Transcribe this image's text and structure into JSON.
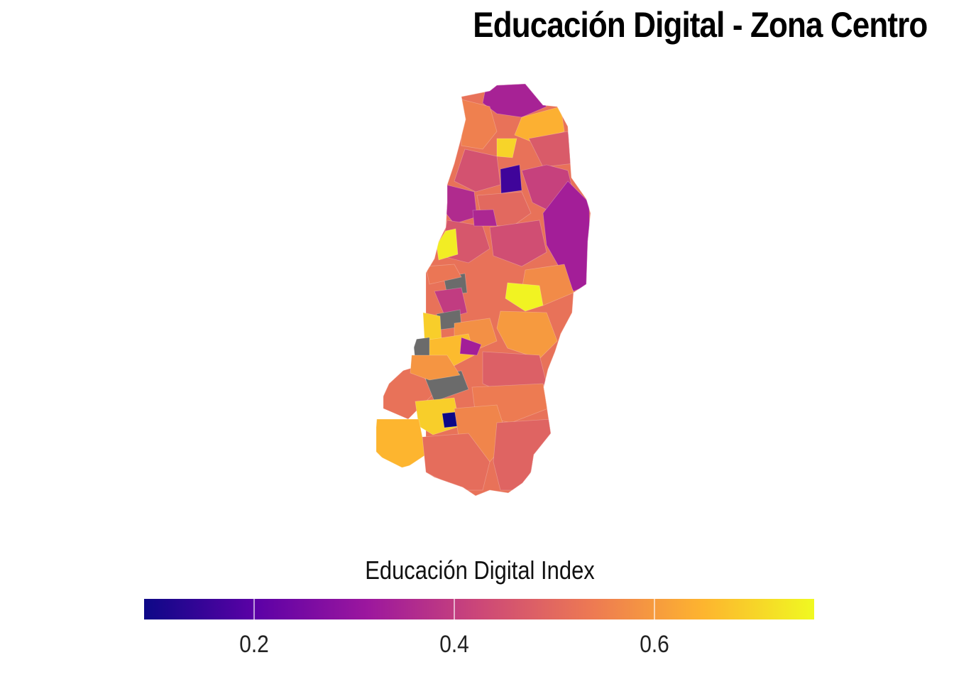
{
  "title": "Educación Digital - Zona Centro",
  "legend": {
    "title": "Educación Digital Index",
    "colormap": "plasma",
    "range": [
      0.09,
      0.76
    ],
    "ticks": [
      {
        "value": 0.2,
        "label": "0.2"
      },
      {
        "value": 0.4,
        "label": "0.4"
      },
      {
        "value": 0.6,
        "label": "0.6"
      }
    ],
    "gradient_colors": [
      "#0d0887",
      "#5c01a6",
      "#9c179e",
      "#cc4778",
      "#ed7953",
      "#fdb42f",
      "#f0f921"
    ],
    "missing_color": "#6b6b6b"
  },
  "regions": [
    {
      "id": "r1",
      "value": 0.34
    },
    {
      "id": "r2",
      "value": 0.52
    },
    {
      "id": "r3",
      "value": 0.64
    },
    {
      "id": "r4",
      "value": 0.47
    },
    {
      "id": "r5",
      "value": 0.55
    },
    {
      "id": "r6",
      "value": 0.45
    },
    {
      "id": "r7",
      "value": 0.7
    },
    {
      "id": "r8",
      "value": 0.16
    },
    {
      "id": "r9",
      "value": 0.41
    },
    {
      "id": "r10",
      "value": 0.36
    },
    {
      "id": "r11",
      "value": 0.33
    },
    {
      "id": "r12",
      "value": 0.5
    },
    {
      "id": "r13",
      "value": 0.46
    },
    {
      "id": "r14",
      "value": 0.74
    },
    {
      "id": "r15",
      "value": 0.44
    },
    {
      "id": "r16",
      "value": 0.35
    },
    {
      "id": "r17",
      "value": 0.57
    },
    {
      "id": "r18",
      "value": null
    },
    {
      "id": "r19",
      "value": 0.53
    },
    {
      "id": "r20",
      "value": 0.75
    },
    {
      "id": "r21",
      "value": 0.4
    },
    {
      "id": "r22",
      "value": 0.6
    },
    {
      "id": "r23",
      "value": null
    },
    {
      "id": "r24",
      "value": 0.69
    },
    {
      "id": "r25",
      "value": 0.58
    },
    {
      "id": "r26",
      "value": null
    },
    {
      "id": "r27",
      "value": 0.66
    },
    {
      "id": "r28",
      "value": 0.48
    },
    {
      "id": "r29",
      "value": 0.52
    },
    {
      "id": "r30",
      "value": 0.43
    },
    {
      "id": "r31",
      "value": 0.09
    },
    {
      "id": "r32",
      "value": 0.56
    },
    {
      "id": "r33",
      "value": 0.59
    },
    {
      "id": "r34",
      "value": 0.49
    },
    {
      "id": "r35",
      "value": 0.54
    },
    {
      "id": "r36",
      "value": 0.33
    },
    {
      "id": "r37",
      "value": 0.51
    },
    {
      "id": "r38",
      "value": 0.65
    }
  ]
}
